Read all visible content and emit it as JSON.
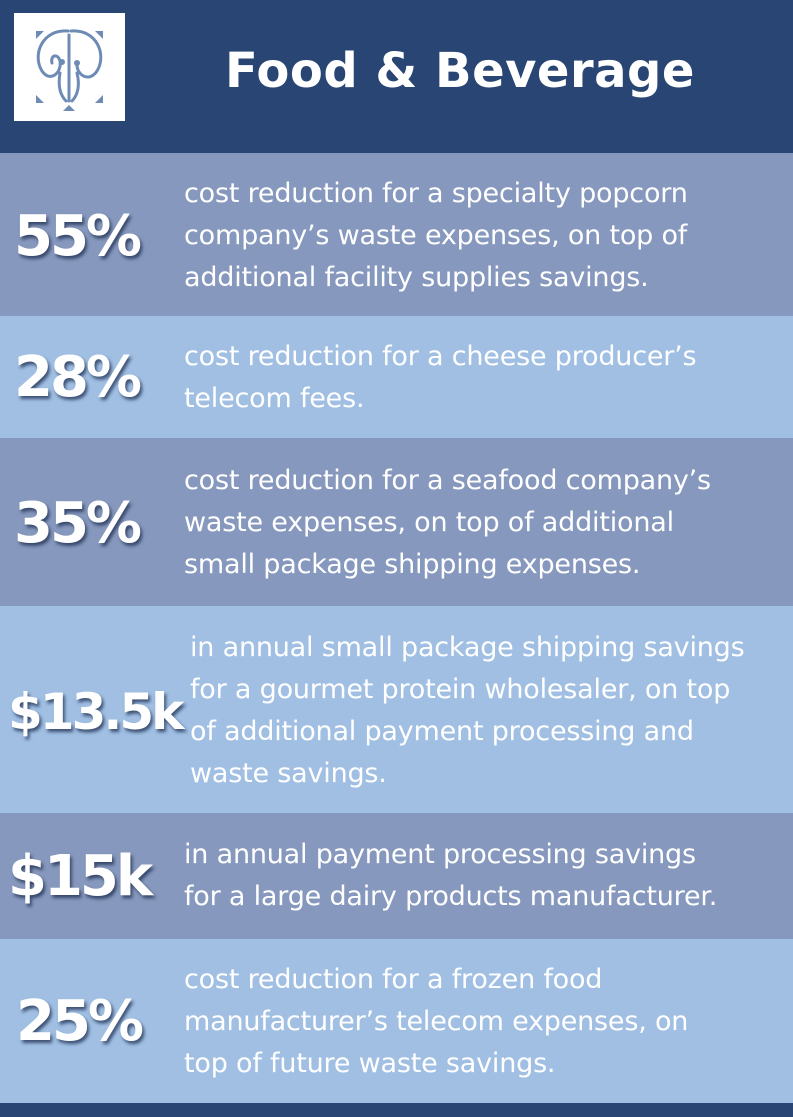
{
  "header": {
    "title": "Food & Beverage",
    "logo_icon": "company-monogram-logo",
    "background_color": "#294573"
  },
  "colors": {
    "row_dark": "#8698bd",
    "row_light": "#a0bfe3",
    "text": "#ffffff"
  },
  "stats": [
    {
      "value": "55%",
      "lines": [
        "cost reduction for a specialty popcorn",
        "company’s waste expenses, on top of",
        "additional facility supplies savings."
      ]
    },
    {
      "value": "28%",
      "lines": [
        "cost reduction for a cheese producer’s",
        "telecom fees."
      ]
    },
    {
      "value": "35%",
      "lines": [
        "cost reduction for a seafood company’s",
        "waste expenses, on top of additional",
        "small package shipping expenses."
      ]
    },
    {
      "value": "$13.5k",
      "lines": [
        "in annual small package shipping savings",
        "for a gourmet protein wholesaler, on top",
        "of additional payment processing and",
        "waste savings."
      ]
    },
    {
      "value": "$15k",
      "lines": [
        "in annual payment processing savings",
        "for a large dairy products manufacturer."
      ]
    },
    {
      "value": "25%",
      "lines": [
        "cost reduction for a frozen food",
        "manufacturer’s telecom expenses, on",
        "top of future waste savings."
      ]
    }
  ]
}
